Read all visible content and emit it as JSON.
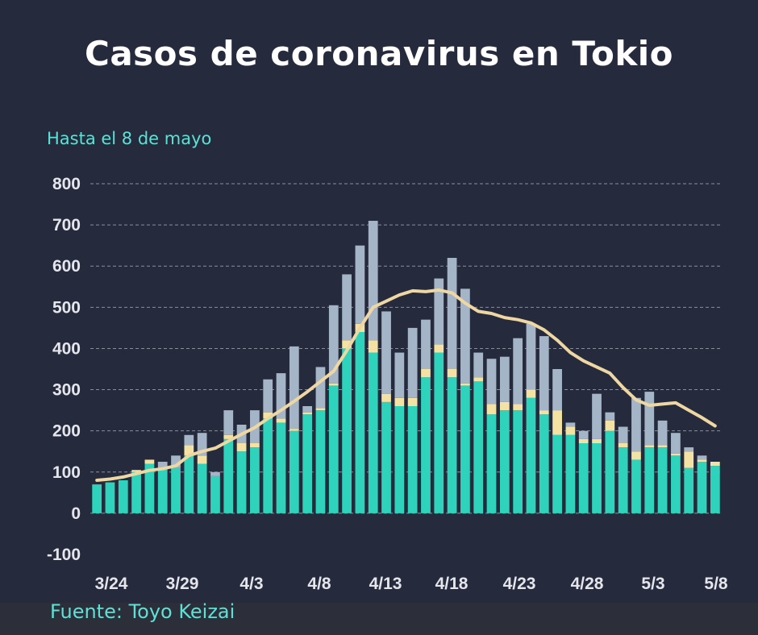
{
  "title": "Casos de coronavirus en Tokio",
  "subtitle": "Hasta el 8 de mayo",
  "source": "Fuente: Toyo Keizai",
  "colors": {
    "background": "#262a3d",
    "bar_main": "#2fd3bc",
    "bar_mid": "#f4e2a4",
    "bar_top": "#a5b5c8",
    "avg_line": "#eed7a2",
    "grid": "#b5b9c4"
  },
  "chart_data": {
    "type": "bar",
    "y_ticks": [
      "800",
      "700",
      "600",
      "500",
      "400",
      "300",
      "200",
      "100",
      "0",
      "-100"
    ],
    "ylim": [
      -100,
      800
    ],
    "x_tick_labels": [
      "3/24",
      "3/29",
      "4/3",
      "4/8",
      "4/13",
      "4/18",
      "4/23",
      "4/28",
      "5/3",
      "5/8"
    ],
    "grid": true,
    "series": [
      {
        "values": [
          70,
          75,
          80,
          100,
          120,
          110,
          110,
          140,
          120,
          90,
          180,
          150,
          160,
          230,
          220,
          200,
          240,
          250,
          310,
          400,
          440,
          390,
          270,
          260,
          260,
          330,
          390,
          330,
          310,
          320,
          240,
          250,
          250,
          280,
          240,
          190,
          190,
          170,
          170,
          200,
          160,
          130,
          160,
          160,
          140,
          110,
          125,
          115
        ]
      },
      {
        "values": [
          0,
          0,
          0,
          5,
          10,
          0,
          0,
          25,
          20,
          0,
          10,
          20,
          10,
          15,
          10,
          5,
          5,
          5,
          5,
          20,
          20,
          30,
          20,
          20,
          20,
          20,
          20,
          20,
          5,
          10,
          25,
          20,
          15,
          20,
          10,
          60,
          20,
          10,
          10,
          25,
          10,
          20,
          5,
          5,
          5,
          40,
          5,
          10
        ]
      },
      {
        "values": [
          0,
          0,
          0,
          0,
          0,
          15,
          30,
          25,
          55,
          10,
          60,
          45,
          80,
          80,
          110,
          200,
          15,
          100,
          190,
          160,
          190,
          290,
          200,
          110,
          170,
          120,
          160,
          270,
          230,
          60,
          110,
          110,
          160,
          160,
          180,
          100,
          10,
          20,
          110,
          20,
          40,
          130,
          130,
          60,
          50,
          10,
          10,
          0
        ]
      },
      {
        "values": [
          80,
          83,
          88,
          96,
          104,
          108,
          115,
          140,
          150,
          158,
          175,
          192,
          208,
          230,
          250,
          272,
          295,
          320,
          345,
          395,
          450,
          500,
          515,
          530,
          540,
          538,
          542,
          535,
          510,
          490,
          485,
          475,
          470,
          462,
          445,
          420,
          390,
          370,
          355,
          340,
          305,
          275,
          262,
          265,
          268,
          250,
          232,
          212
        ]
      }
    ]
  }
}
